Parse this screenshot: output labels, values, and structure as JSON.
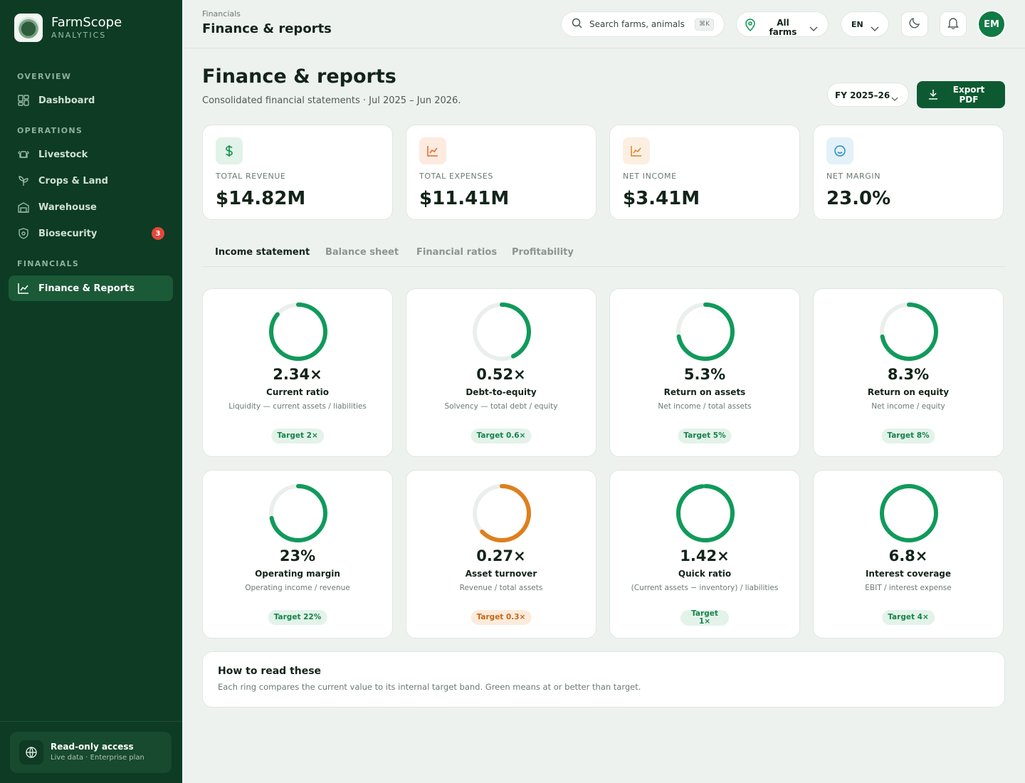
{
  "brand": {
    "name": "FarmScope",
    "sub": "ANALYTICS"
  },
  "sidebar": {
    "sections": [
      "OVERVIEW",
      "OPERATIONS",
      "FINANCIALS"
    ],
    "items": [
      {
        "label": "Dashboard",
        "icon": "dashboard-icon"
      },
      {
        "label": "Livestock",
        "icon": "livestock-icon"
      },
      {
        "label": "Crops & Land",
        "icon": "sprout-icon"
      },
      {
        "label": "Warehouse",
        "icon": "warehouse-icon"
      },
      {
        "label": "Biosecurity",
        "icon": "shield-icon",
        "badge": "3"
      },
      {
        "label": "Finance & Reports",
        "icon": "chart-icon",
        "active": true
      }
    ],
    "access": {
      "title": "Read-only access",
      "sub": "Live data · Enterprise plan"
    }
  },
  "topbar": {
    "breadcrumb": "Financials",
    "title": "Finance & reports",
    "search_placeholder": "Search farms, animals, r",
    "search_shortcut": "⌘K",
    "farm_filter": "All farms",
    "language": "EN",
    "avatar_initials": "EM"
  },
  "page": {
    "title": "Finance & reports",
    "subtitle": "Consolidated financial statements · Jul 2025 – Jun 2026.",
    "fiscal_year": "FY 2025–26",
    "export_label": "Export PDF"
  },
  "kpis": [
    {
      "label": "TOTAL REVENUE",
      "value": "$14.82M",
      "icon": "dollar-icon",
      "color": "#0f8a4c",
      "bg": "#e2f3e9"
    },
    {
      "label": "TOTAL EXPENSES",
      "value": "$11.41M",
      "icon": "trend-icon",
      "color": "#e06a2a",
      "bg": "#fdebe0"
    },
    {
      "label": "NET INCOME",
      "value": "$3.41M",
      "icon": "trend-icon",
      "color": "#d9822e",
      "bg": "#fcefe1"
    },
    {
      "label": "NET MARGIN",
      "value": "23.0%",
      "icon": "smile-icon",
      "color": "#2a8bc4",
      "bg": "#e3f1f9"
    }
  ],
  "tabs": [
    "Income statement",
    "Balance sheet",
    "Financial ratios",
    "Profitability"
  ],
  "active_tab": "Income statement",
  "ratios": [
    {
      "value": "2.34×",
      "name": "Current ratio",
      "desc": "Liquidity — current assets / liabilities",
      "target": "Target 2×",
      "fill": 0.86,
      "status": "ok"
    },
    {
      "value": "0.52×",
      "name": "Debt-to-equity",
      "desc": "Solvency — total debt / equity",
      "target": "Target 0.6×",
      "fill": 0.43,
      "status": "ok"
    },
    {
      "value": "5.3%",
      "name": "Return on assets",
      "desc": "Net income / total assets",
      "target": "Target 5%",
      "fill": 0.72,
      "status": "ok"
    },
    {
      "value": "8.3%",
      "name": "Return on equity",
      "desc": "Net income / equity",
      "target": "Target 8%",
      "fill": 0.72,
      "status": "ok"
    },
    {
      "value": "23%",
      "name": "Operating margin",
      "desc": "Operating income / revenue",
      "target": "Target 22%",
      "fill": 0.72,
      "status": "ok"
    },
    {
      "value": "0.27×",
      "name": "Asset turnover",
      "desc": "Revenue / total assets",
      "target": "Target 0.3×",
      "fill": 0.63,
      "status": "warn"
    },
    {
      "value": "1.42×",
      "name": "Quick ratio",
      "desc": "(Current assets − inventory) / liabilities",
      "target": "Target 1×",
      "fill": 0.98,
      "status": "ok"
    },
    {
      "value": "6.8×",
      "name": "Interest coverage",
      "desc": "EBIT / interest expense",
      "target": "Target 4×",
      "fill": 1.0,
      "status": "ok"
    }
  ],
  "colors": {
    "ok": "#109a5b",
    "warn": "#de7f1e",
    "track": "#eaefec"
  },
  "help": {
    "title": "How to read these",
    "text": "Each ring compares the current value to its internal target band. Green means at or better than target."
  }
}
